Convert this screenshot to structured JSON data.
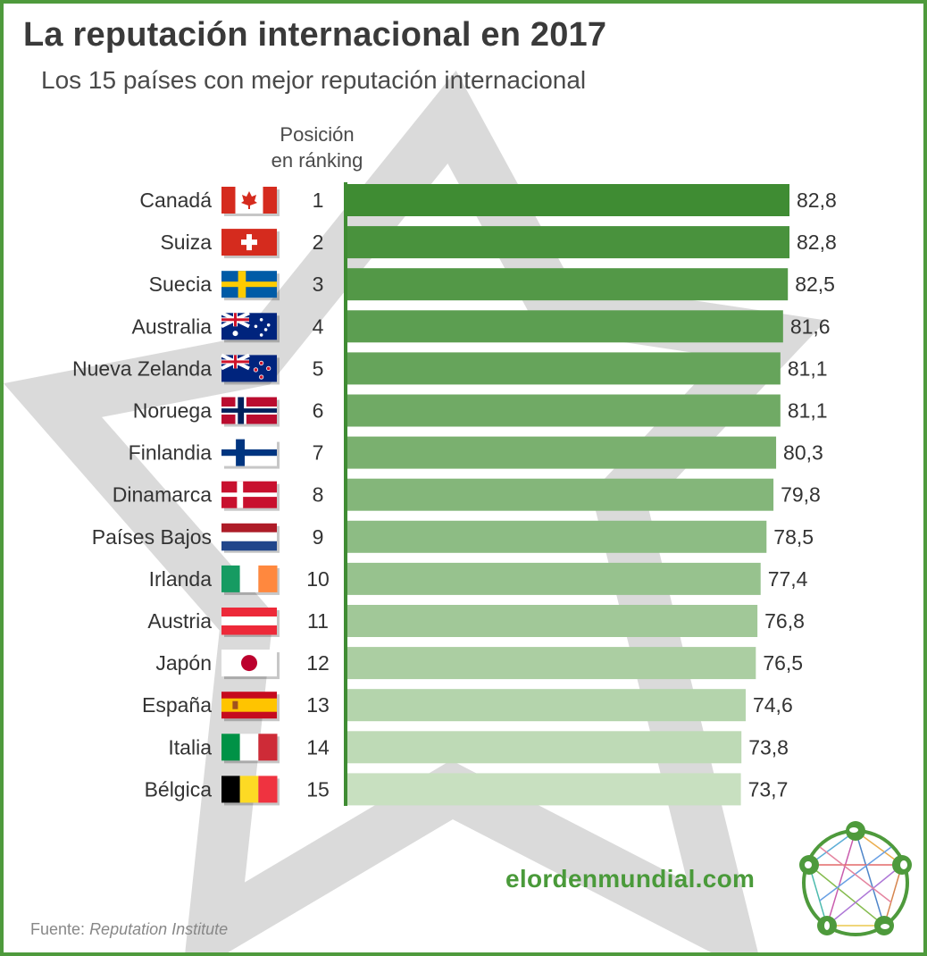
{
  "header": {
    "title": "La reputación internacional en 2017",
    "subtitle": "Los 15 países con mejor reputación internacional",
    "rank_label_line1": "Posición",
    "rank_label_line2": "en ránking"
  },
  "footer": {
    "brand": "elordenmundial.com",
    "source_prefix": "Fuente:",
    "source_name": "Reputation Institute"
  },
  "colors": {
    "bar_top": "#3f8c33",
    "bar_bottom": "#c8e0c0",
    "axis": "#3f8c33",
    "brand": "#4a9a3a",
    "frame": "#4e9a3c",
    "star": "#d5d5d5"
  },
  "chart_data": {
    "type": "bar",
    "orientation": "horizontal",
    "categories": [
      "Canadá",
      "Suiza",
      "Suecia",
      "Australia",
      "Nueva Zelanda",
      "Noruega",
      "Finlandia",
      "Dinamarca",
      "Países Bajos",
      "Irlanda",
      "Austria",
      "Japón",
      "España",
      "Italia",
      "Bélgica"
    ],
    "ranks": [
      "1",
      "2",
      "3",
      "4",
      "5",
      "6",
      "7",
      "8",
      "9",
      "10",
      "11",
      "12",
      "13",
      "14",
      "15"
    ],
    "values": [
      82.8,
      82.8,
      82.5,
      81.6,
      81.1,
      81.1,
      80.3,
      79.8,
      78.5,
      77.4,
      76.8,
      76.5,
      74.6,
      73.8,
      73.7
    ],
    "value_labels": [
      "82,8",
      "82,8",
      "82,5",
      "81,6",
      "81,1",
      "81,1",
      "80,3",
      "79,8",
      "78,5",
      "77,4",
      "76,8",
      "76,5",
      "74,6",
      "73,8",
      "73,7"
    ],
    "flags": [
      "canada-flag",
      "switzerland-flag",
      "sweden-flag",
      "australia-flag",
      "new-zealand-flag",
      "norway-flag",
      "finland-flag",
      "denmark-flag",
      "netherlands-flag",
      "ireland-flag",
      "austria-flag",
      "japan-flag",
      "spain-flag",
      "italy-flag",
      "belgium-flag"
    ],
    "title": "La reputación internacional en 2017",
    "subtitle": "Los 15 países con mejor reputación internacional",
    "xlabel": "",
    "ylabel": "",
    "grid": false,
    "legend": "none"
  }
}
